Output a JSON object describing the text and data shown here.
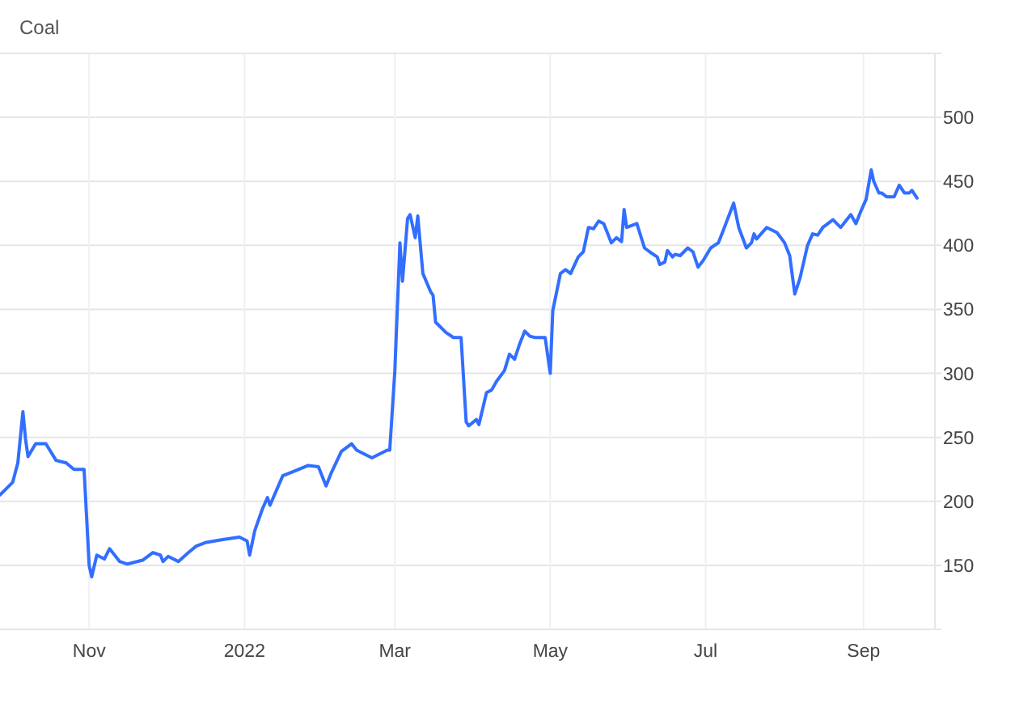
{
  "chart_data": {
    "type": "line",
    "title": "Coal",
    "x": [
      "2021-09-27",
      "2021-10-02",
      "2021-10-04",
      "2021-10-06",
      "2021-10-07",
      "2021-10-08",
      "2021-10-11",
      "2021-10-15",
      "2021-10-19",
      "2021-10-23",
      "2021-10-26",
      "2021-10-30",
      "2021-11-01",
      "2021-11-02",
      "2021-11-04",
      "2021-11-07",
      "2021-11-09",
      "2021-11-11",
      "2021-11-13",
      "2021-11-16",
      "2021-11-22",
      "2021-11-26",
      "2021-11-29",
      "2021-11-30",
      "2021-12-02",
      "2021-12-06",
      "2021-12-10",
      "2021-12-13",
      "2021-12-17",
      "2021-12-23",
      "2021-12-30",
      "2022-01-02",
      "2022-01-03",
      "2022-01-05",
      "2022-01-08",
      "2022-01-10",
      "2022-01-11",
      "2022-01-16",
      "2022-01-21",
      "2022-01-26",
      "2022-01-30",
      "2022-02-02",
      "2022-02-04",
      "2022-02-08",
      "2022-02-12",
      "2022-02-14",
      "2022-02-20",
      "2022-02-26",
      "2022-02-27",
      "2022-03-01",
      "2022-03-03",
      "2022-03-04",
      "2022-03-06",
      "2022-03-07",
      "2022-03-09",
      "2022-03-10",
      "2022-03-12",
      "2022-03-15",
      "2022-03-16",
      "2022-03-17",
      "2022-03-21",
      "2022-03-24",
      "2022-03-27",
      "2022-03-29",
      "2022-03-30",
      "2022-04-02",
      "2022-04-03",
      "2022-04-06",
      "2022-04-08",
      "2022-04-10",
      "2022-04-13",
      "2022-04-15",
      "2022-04-17",
      "2022-04-19",
      "2022-04-21",
      "2022-04-23",
      "2022-04-25",
      "2022-04-29",
      "2022-05-01",
      "2022-05-02",
      "2022-05-05",
      "2022-05-07",
      "2022-05-09",
      "2022-05-12",
      "2022-05-14",
      "2022-05-16",
      "2022-05-18",
      "2022-05-20",
      "2022-05-22",
      "2022-05-25",
      "2022-05-27",
      "2022-05-29",
      "2022-05-30",
      "2022-05-31",
      "2022-06-04",
      "2022-06-07",
      "2022-06-09",
      "2022-06-12",
      "2022-06-13",
      "2022-06-15",
      "2022-06-16",
      "2022-06-18",
      "2022-06-19",
      "2022-06-21",
      "2022-06-24",
      "2022-06-26",
      "2022-06-28",
      "2022-06-30",
      "2022-07-03",
      "2022-07-06",
      "2022-07-08",
      "2022-07-12",
      "2022-07-14",
      "2022-07-17",
      "2022-07-19",
      "2022-07-20",
      "2022-07-21",
      "2022-07-25",
      "2022-07-29",
      "2022-08-01",
      "2022-08-03",
      "2022-08-05",
      "2022-08-07",
      "2022-08-10",
      "2022-08-12",
      "2022-08-14",
      "2022-08-16",
      "2022-08-20",
      "2022-08-23",
      "2022-08-25",
      "2022-08-27",
      "2022-08-29",
      "2022-08-31",
      "2022-09-02",
      "2022-09-04",
      "2022-09-05",
      "2022-09-07",
      "2022-09-08",
      "2022-09-10",
      "2022-09-13",
      "2022-09-15",
      "2022-09-17",
      "2022-09-19",
      "2022-09-20",
      "2022-09-22"
    ],
    "series": [
      {
        "color": "#326eff",
        "values": [
          205,
          215,
          230,
          270,
          249,
          235,
          245,
          245,
          232,
          230,
          225,
          225,
          150,
          141,
          158,
          155,
          163,
          158,
          153,
          151,
          154,
          160,
          158,
          153,
          157,
          153,
          160,
          165,
          168,
          170,
          172,
          169,
          158,
          177,
          194,
          203,
          197,
          220,
          224,
          228,
          227,
          212,
          222,
          239,
          245,
          240,
          234,
          240,
          240,
          302,
          402,
          372,
          421,
          424,
          406,
          423,
          378,
          364,
          361,
          340,
          332,
          328,
          328,
          262,
          259,
          264,
          260,
          285,
          287,
          294,
          302,
          315,
          311,
          323,
          333,
          329,
          328,
          328,
          300,
          349,
          378,
          381,
          378,
          391,
          395,
          414,
          413,
          419,
          417,
          402,
          406,
          403,
          428,
          414,
          417,
          398,
          395,
          391,
          385,
          387,
          396,
          391,
          393,
          392,
          398,
          395,
          383,
          388,
          398,
          402,
          412,
          433,
          414,
          398,
          402,
          409,
          405,
          414,
          410,
          402,
          392,
          362,
          374,
          400,
          409,
          408,
          414,
          420,
          414,
          419,
          424,
          417,
          427,
          436,
          459,
          450,
          441,
          441,
          438,
          438,
          447,
          441,
          441,
          443,
          437
        ]
      }
    ],
    "xlim": [
      "2021-09-27",
      "2022-09-29"
    ],
    "xticks": [
      {
        "value": "2021-11-01",
        "label": "Nov"
      },
      {
        "value": "2022-01-01",
        "label": "2022"
      },
      {
        "value": "2022-03-01",
        "label": "Mar"
      },
      {
        "value": "2022-05-01",
        "label": "May"
      },
      {
        "value": "2022-07-01",
        "label": "Jul"
      },
      {
        "value": "2022-09-01",
        "label": "Sep"
      }
    ],
    "ylim": [
      100,
      550
    ],
    "yticks": [
      150,
      200,
      250,
      300,
      350,
      400,
      450,
      500
    ],
    "grid": true
  }
}
